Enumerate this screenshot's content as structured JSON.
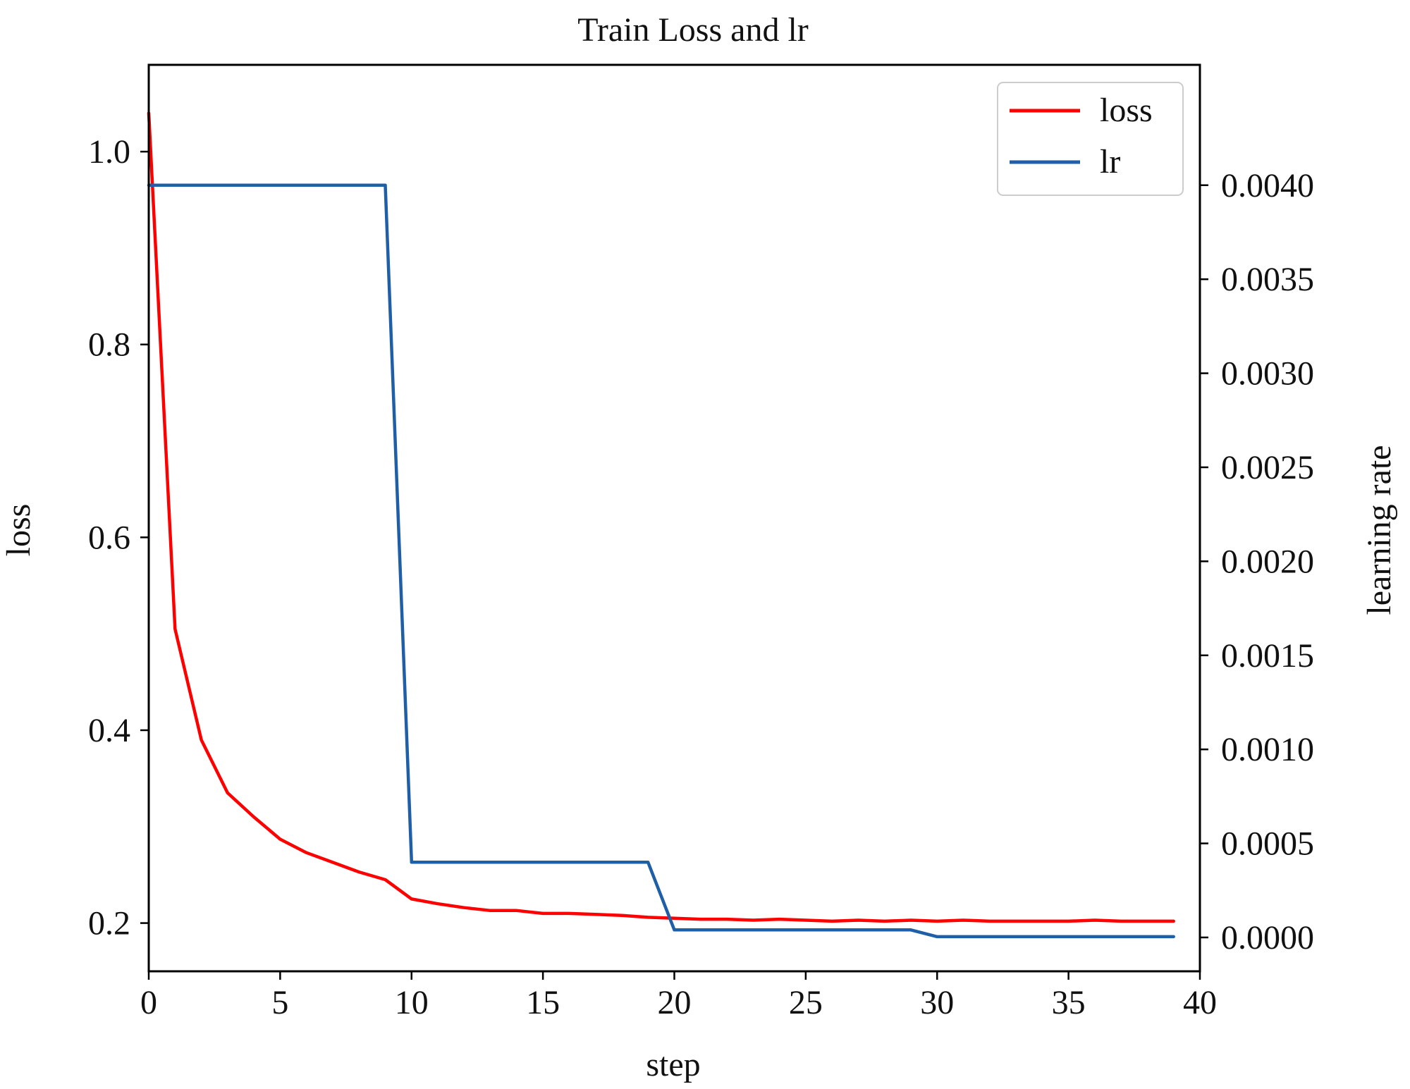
{
  "chart_data": {
    "type": "line",
    "title": "Train Loss and lr",
    "xlabel": "step",
    "ylabel": "loss",
    "y2label": "learning rate",
    "xlim": [
      0,
      40
    ],
    "ylim": [
      0.15,
      1.09
    ],
    "y2lim": [
      -0.00018,
      0.00464
    ],
    "xticks": [
      0,
      5,
      10,
      15,
      20,
      25,
      30,
      35,
      40
    ],
    "yticks": [
      0.2,
      0.4,
      0.6,
      0.8,
      1.0
    ],
    "ytick_labels": [
      "0.2",
      "0.4",
      "0.6",
      "0.8",
      "1.0"
    ],
    "y2ticks": [
      0.0,
      0.0005,
      0.001,
      0.0015,
      0.002,
      0.0025,
      0.003,
      0.0035,
      0.004
    ],
    "y2tick_labels": [
      "0.0000",
      "0.0005",
      "0.0010",
      "0.0015",
      "0.0020",
      "0.0025",
      "0.0030",
      "0.0035",
      "0.0040"
    ],
    "grid": false,
    "legend_position": "top-right",
    "series": [
      {
        "name": "loss",
        "axis": "left",
        "color": "#ff0000",
        "x": [
          0,
          1,
          2,
          3,
          4,
          5,
          6,
          7,
          8,
          9,
          10,
          11,
          12,
          13,
          14,
          15,
          16,
          17,
          18,
          19,
          20,
          21,
          22,
          23,
          24,
          25,
          26,
          27,
          28,
          29,
          30,
          31,
          32,
          33,
          34,
          35,
          36,
          37,
          38,
          39
        ],
        "values": [
          1.04,
          0.505,
          0.39,
          0.335,
          0.31,
          0.287,
          0.273,
          0.263,
          0.253,
          0.245,
          0.225,
          0.22,
          0.216,
          0.213,
          0.213,
          0.21,
          0.21,
          0.209,
          0.208,
          0.206,
          0.205,
          0.204,
          0.204,
          0.203,
          0.204,
          0.203,
          0.202,
          0.203,
          0.202,
          0.203,
          0.202,
          0.203,
          0.202,
          0.202,
          0.202,
          0.202,
          0.203,
          0.202,
          0.202,
          0.202
        ]
      },
      {
        "name": "lr",
        "axis": "right",
        "color": "#1f5fa8",
        "x": [
          0,
          1,
          2,
          3,
          4,
          5,
          6,
          7,
          8,
          9,
          10,
          11,
          12,
          13,
          14,
          15,
          16,
          17,
          18,
          19,
          20,
          21,
          22,
          23,
          24,
          25,
          26,
          27,
          28,
          29,
          30,
          31,
          32,
          33,
          34,
          35,
          36,
          37,
          38,
          39
        ],
        "values": [
          0.004,
          0.004,
          0.004,
          0.004,
          0.004,
          0.004,
          0.004,
          0.004,
          0.004,
          0.004,
          0.0004,
          0.0004,
          0.0004,
          0.0004,
          0.0004,
          0.0004,
          0.0004,
          0.0004,
          0.0004,
          0.0004,
          4e-05,
          4e-05,
          4e-05,
          4e-05,
          4e-05,
          4e-05,
          4e-05,
          4e-05,
          4e-05,
          4e-05,
          4e-06,
          4e-06,
          4e-06,
          4e-06,
          4e-06,
          4e-06,
          4e-06,
          4e-06,
          4e-06,
          4e-06
        ]
      }
    ]
  }
}
